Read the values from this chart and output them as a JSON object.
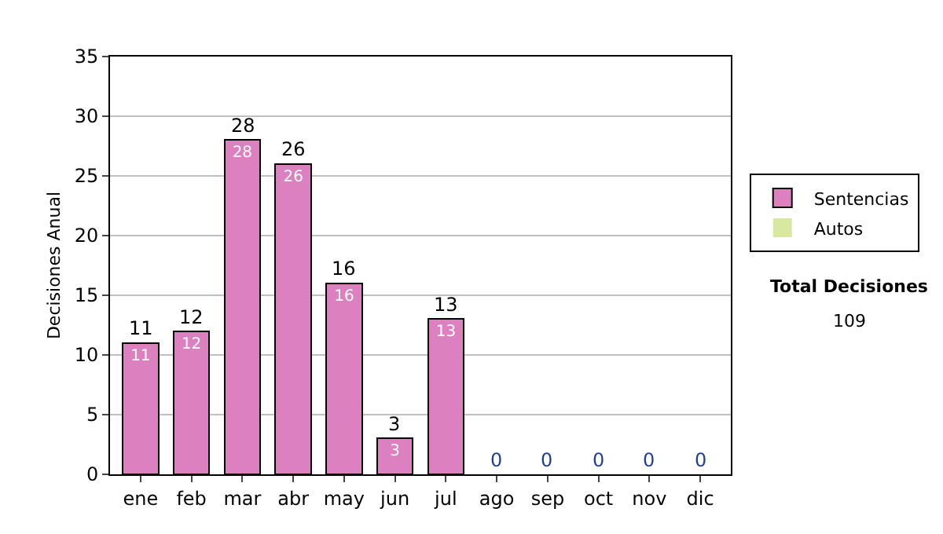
{
  "chart_data": {
    "type": "bar",
    "ylabel": "Decisiones Anual",
    "categories": [
      "ene",
      "feb",
      "mar",
      "abr",
      "may",
      "jun",
      "jul",
      "ago",
      "sep",
      "oct",
      "nov",
      "dic"
    ],
    "series": [
      {
        "name": "Sentencias",
        "color": "#dd80c0",
        "values": [
          11,
          12,
          28,
          26,
          16,
          3,
          13,
          0,
          0,
          0,
          0,
          0
        ],
        "value_labels": [
          "11",
          "12",
          "28",
          "26",
          "16",
          "3",
          "13",
          null,
          null,
          null,
          null,
          null
        ]
      },
      {
        "name": "Autos",
        "color": "#d8e8a0",
        "values": [
          0,
          0,
          0,
          0,
          0,
          0,
          0,
          0,
          0,
          0,
          0,
          0
        ]
      }
    ],
    "stacked": true,
    "totals": [
      "11",
      "12",
      "28",
      "26",
      "16",
      "3",
      "13",
      "0",
      "0",
      "0",
      "0",
      "0"
    ],
    "ylim": [
      0,
      35
    ],
    "yticks": [
      0,
      5,
      10,
      15,
      20,
      25,
      30,
      35
    ],
    "grid": "y",
    "legend": "right",
    "annotations": [
      "Total Decisiones",
      "109"
    ]
  }
}
